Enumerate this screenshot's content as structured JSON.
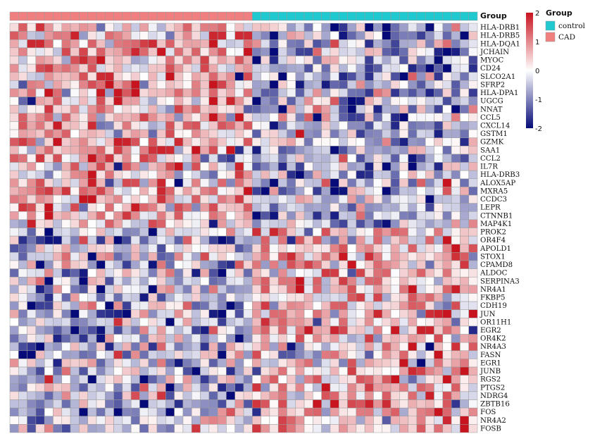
{
  "chart_data": {
    "type": "heatmap",
    "annotation_title": "Group",
    "groups": [
      {
        "name": "CAD",
        "count": 28,
        "color": "#F08080"
      },
      {
        "name": "control",
        "count": 26,
        "color": "#20C8D0"
      }
    ],
    "legend_group_order": [
      "control",
      "CAD"
    ],
    "color_scale": {
      "min": -2,
      "max": 2,
      "ticks": [
        2,
        1,
        0,
        -1,
        -2
      ],
      "low_color": "#050A78",
      "mid_color": "#FFFFFF",
      "high_color": "#C8141E"
    },
    "genes": [
      "HLA-DRB1",
      "HLA-DRB5",
      "HLA-DQA1",
      "JCHAIN",
      "MYOC",
      "CD24",
      "SLCO2A1",
      "SFRP2",
      "HLA-DPA1",
      "UGCG",
      "NNAT",
      "CCL5",
      "CXCL14",
      "GSTM1",
      "GZMK",
      "SAA1",
      "CCL2",
      "IL7R",
      "HLA-DRB3",
      "ALOX5AP",
      "MXRA5",
      "CCDC3",
      "LEPR",
      "CTNNB1",
      "MAP4K1",
      "PROK2",
      "OR4F4",
      "APOLD1",
      "STOX1",
      "CPAMD8",
      "ALDOC",
      "SERPINA3",
      "NR4A1",
      "FKBP5",
      "CDH19",
      "JUN",
      "OR11H1",
      "EGR2",
      "OR4K2",
      "NR4A3",
      "FASN",
      "EGR1",
      "JUNB",
      "RGS2",
      "PTGS2",
      "NDRG4",
      "ZBTB16",
      "FOS",
      "NR4A2",
      "FOSB"
    ],
    "cell_counts_per_gene": 54,
    "pattern": [
      {
        "rows": [
          0,
          24
        ],
        "cad_mean": 0.7,
        "control_mean": -0.7
      },
      {
        "rows": [
          25,
          49
        ],
        "cad_mean": -0.6,
        "control_mean": 0.6
      }
    ]
  }
}
